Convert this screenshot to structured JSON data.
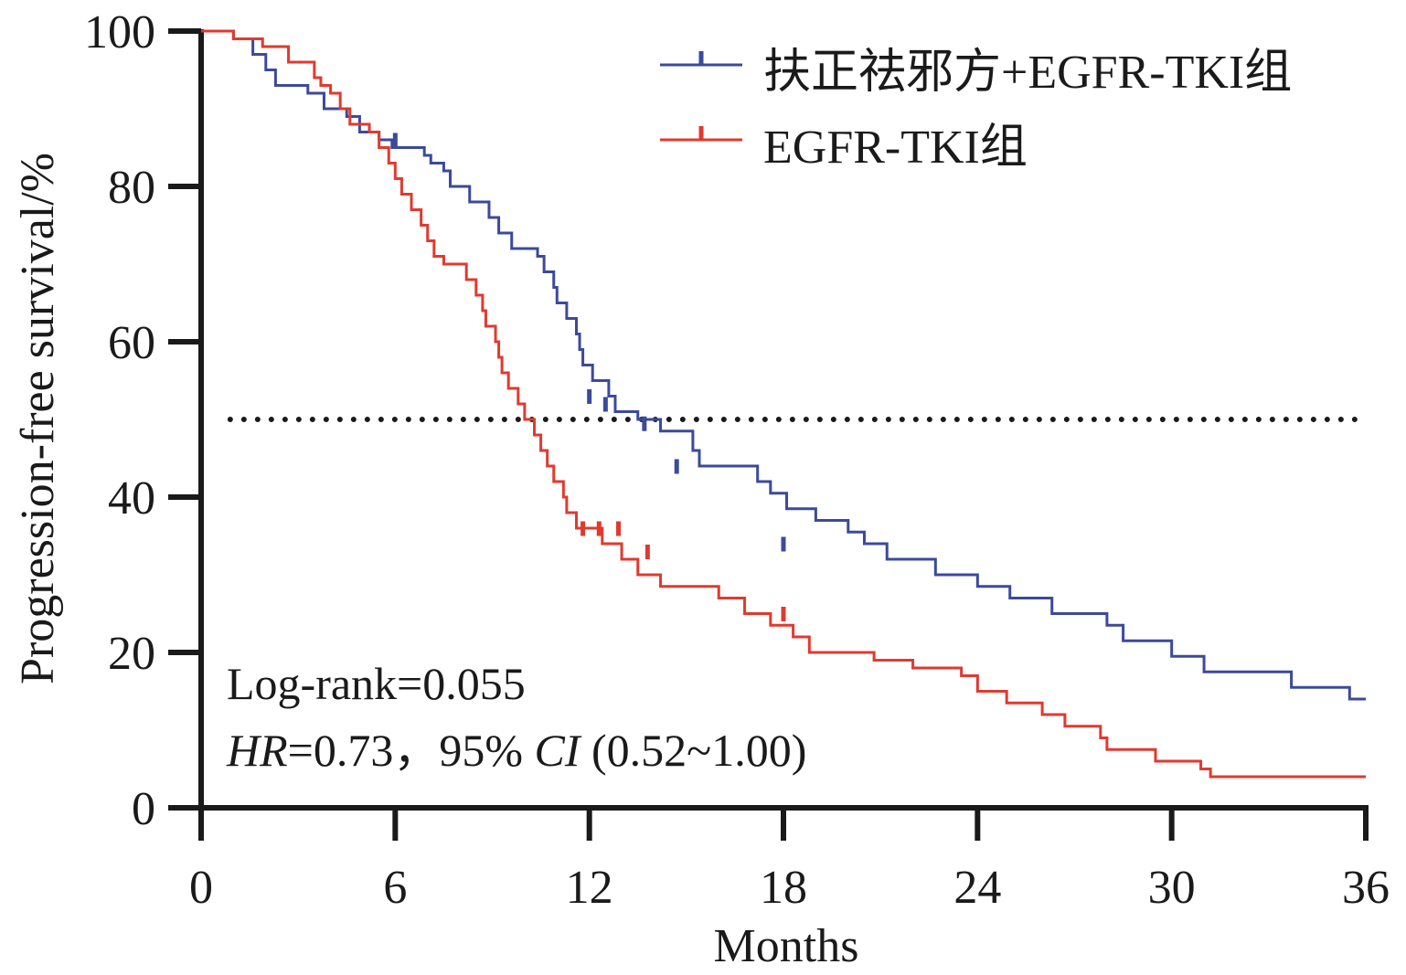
{
  "chart_data": {
    "type": "line",
    "subtype": "kaplan-meier",
    "title": "",
    "xlabel": "Months",
    "ylabel": "Progression-free survival/%",
    "xlim": [
      0,
      36
    ],
    "ylim": [
      0,
      100
    ],
    "x_ticks": [
      "0",
      "6",
      "12",
      "18",
      "24",
      "30",
      "36"
    ],
    "y_ticks": [
      "0",
      "20",
      "40",
      "60",
      "80",
      "100"
    ],
    "reference_line": {
      "y": 50,
      "style": "dotted"
    },
    "legend_position": "top-right",
    "annotations": {
      "logrank": "Log-rank=0.055",
      "hr_italic": "HR",
      "hr_text": "=0.73，95% ",
      "ci_italic": "CI",
      "ci_text": " (0.52~1.00)"
    },
    "series": [
      {
        "name": "扶正祛邪方+EGFR-TKI组",
        "color": "#3b4a9b",
        "steps": [
          [
            0,
            100
          ],
          [
            1.0,
            99
          ],
          [
            1.6,
            97
          ],
          [
            2.0,
            95
          ],
          [
            2.3,
            93
          ],
          [
            3.3,
            92
          ],
          [
            3.8,
            90
          ],
          [
            4.5,
            89
          ],
          [
            4.9,
            87
          ],
          [
            5.5,
            86
          ],
          [
            5.9,
            85
          ],
          [
            6.9,
            84
          ],
          [
            7.1,
            83
          ],
          [
            7.5,
            82
          ],
          [
            7.7,
            80
          ],
          [
            8.3,
            78
          ],
          [
            8.9,
            76
          ],
          [
            9.2,
            74
          ],
          [
            9.6,
            72
          ],
          [
            10.4,
            71
          ],
          [
            10.6,
            69
          ],
          [
            10.9,
            67
          ],
          [
            11.0,
            65
          ],
          [
            11.3,
            63
          ],
          [
            11.6,
            61
          ],
          [
            11.7,
            59
          ],
          [
            11.8,
            57
          ],
          [
            12.1,
            55
          ],
          [
            12.6,
            53
          ],
          [
            12.8,
            51
          ],
          [
            13.5,
            50
          ],
          [
            14.2,
            48.5
          ],
          [
            15.2,
            46
          ],
          [
            15.4,
            44
          ],
          [
            17.2,
            42
          ],
          [
            17.6,
            40.5
          ],
          [
            18.1,
            38.5
          ],
          [
            19.0,
            37
          ],
          [
            20.0,
            35.5
          ],
          [
            20.5,
            34
          ],
          [
            21.2,
            32
          ],
          [
            22.7,
            30
          ],
          [
            24.0,
            28.5
          ],
          [
            25.0,
            27
          ],
          [
            26.3,
            25
          ],
          [
            28.0,
            23.5
          ],
          [
            28.5,
            21.5
          ],
          [
            30.0,
            19.5
          ],
          [
            31.0,
            17.5
          ],
          [
            33.7,
            15.5
          ],
          [
            35.5,
            14
          ],
          [
            36,
            14
          ]
        ],
        "censored": [
          [
            6,
            85
          ],
          [
            12,
            52
          ],
          [
            12.5,
            51
          ],
          [
            13.7,
            48.5
          ],
          [
            14.7,
            43
          ],
          [
            18,
            33
          ]
        ]
      },
      {
        "name": "EGFR-TKI组",
        "color": "#e03a2f",
        "steps": [
          [
            0,
            100
          ],
          [
            1.0,
            99
          ],
          [
            1.9,
            98
          ],
          [
            2.7,
            96
          ],
          [
            3.5,
            94
          ],
          [
            3.7,
            93
          ],
          [
            4.0,
            92
          ],
          [
            4.3,
            90
          ],
          [
            4.6,
            88
          ],
          [
            5.2,
            87
          ],
          [
            5.5,
            85
          ],
          [
            5.8,
            83
          ],
          [
            6.0,
            81
          ],
          [
            6.2,
            79
          ],
          [
            6.5,
            77
          ],
          [
            6.8,
            75
          ],
          [
            7.0,
            73
          ],
          [
            7.2,
            71
          ],
          [
            7.5,
            70
          ],
          [
            8.2,
            68
          ],
          [
            8.5,
            66
          ],
          [
            8.7,
            64
          ],
          [
            8.8,
            62
          ],
          [
            9.1,
            60
          ],
          [
            9.2,
            58
          ],
          [
            9.3,
            56
          ],
          [
            9.5,
            54
          ],
          [
            9.8,
            52
          ],
          [
            10.0,
            50
          ],
          [
            10.3,
            48
          ],
          [
            10.5,
            46
          ],
          [
            10.7,
            44
          ],
          [
            10.9,
            42
          ],
          [
            11.2,
            40
          ],
          [
            11.3,
            38
          ],
          [
            11.6,
            36
          ],
          [
            12.4,
            34
          ],
          [
            13.0,
            32
          ],
          [
            13.5,
            30
          ],
          [
            14.2,
            28.5
          ],
          [
            16.0,
            27
          ],
          [
            16.8,
            25
          ],
          [
            17.6,
            23.5
          ],
          [
            18.3,
            22
          ],
          [
            18.8,
            20
          ],
          [
            20.8,
            19
          ],
          [
            22.0,
            18
          ],
          [
            23.5,
            17
          ],
          [
            24.0,
            15
          ],
          [
            24.9,
            13.5
          ],
          [
            26.0,
            12
          ],
          [
            26.7,
            10.5
          ],
          [
            27.8,
            9
          ],
          [
            28.0,
            7.5
          ],
          [
            29.5,
            6
          ],
          [
            30.9,
            5
          ],
          [
            31.2,
            4
          ],
          [
            36,
            4
          ]
        ],
        "censored": [
          [
            11.8,
            35
          ],
          [
            12.3,
            35
          ],
          [
            12.9,
            35
          ],
          [
            13.8,
            32
          ],
          [
            18,
            24
          ]
        ]
      }
    ]
  }
}
